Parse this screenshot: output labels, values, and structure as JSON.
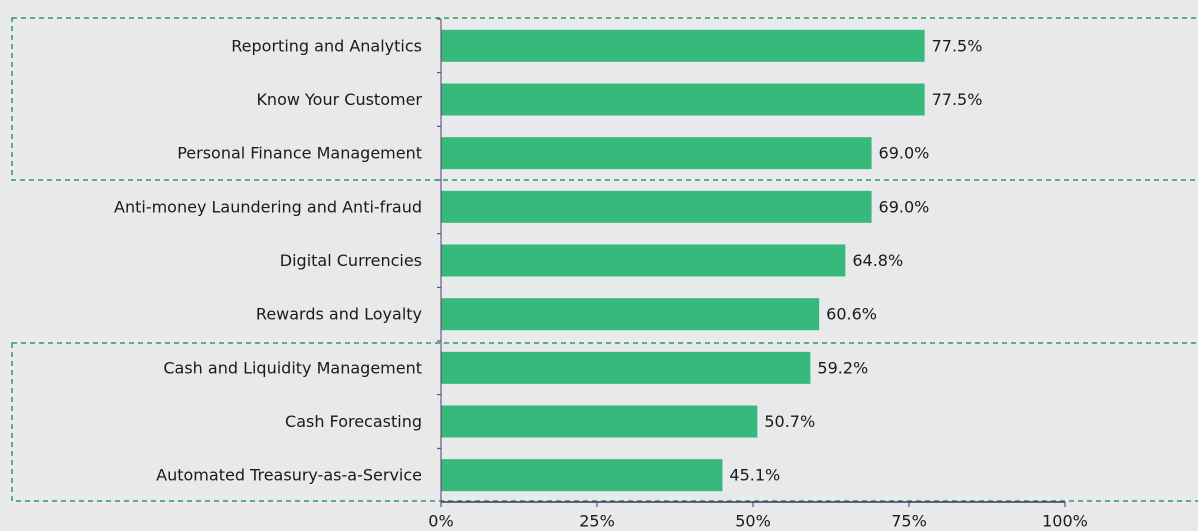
{
  "chart_data": {
    "type": "bar",
    "orientation": "horizontal",
    "categories": [
      "Reporting and Analytics",
      "Know Your Customer",
      "Personal Finance Management",
      "Anti-money Laundering and Anti-fraud",
      "Digital Currencies",
      "Rewards and Loyalty",
      "Cash and Liquidity Management",
      "Cash Forecasting",
      "Automated Treasury-as-a-Service"
    ],
    "values": [
      77.5,
      77.5,
      69.0,
      69.0,
      64.8,
      60.6,
      59.2,
      50.7,
      45.1
    ],
    "value_labels": [
      "77.5%",
      "77.5%",
      "69.0%",
      "69.0%",
      "64.8%",
      "60.6%",
      "59.2%",
      "50.7%",
      "45.1%"
    ],
    "color": "#36b97a",
    "xlim": [
      0,
      100
    ],
    "xticks": [
      {
        "value": 0,
        "label": "0%"
      },
      {
        "value": 25,
        "label": "25%"
      },
      {
        "value": 50,
        "label": "50%"
      },
      {
        "value": 75,
        "label": "75%"
      },
      {
        "value": 100,
        "label": "100%"
      }
    ],
    "grid": false
  }
}
